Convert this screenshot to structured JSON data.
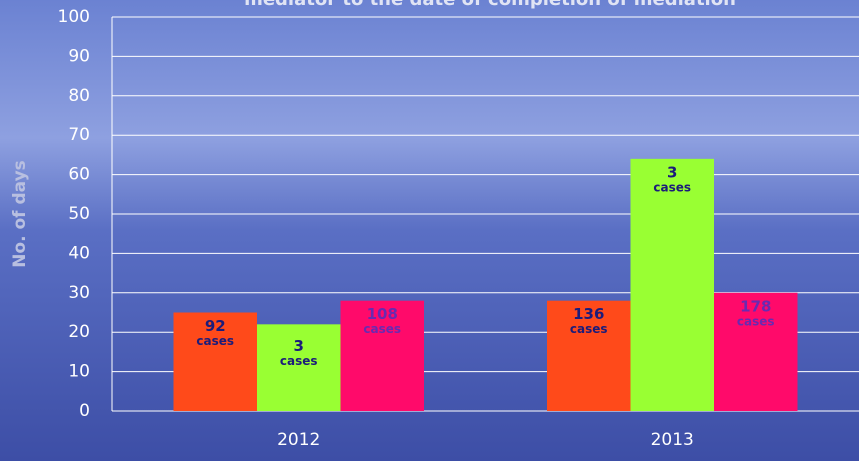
{
  "chart_data": {
    "type": "bar",
    "title": "mediator to the date of completion of mediation",
    "y_label": "No. of days",
    "categories": [
      "2012",
      "2013"
    ],
    "series": [
      {
        "color": "#ff4a1a",
        "values": [
          25,
          28
        ],
        "case_counts": [
          92,
          136
        ],
        "label_color": "#1c1c7a"
      },
      {
        "color": "#99ff33",
        "values": [
          22,
          64
        ],
        "case_counts": [
          3,
          3
        ],
        "label_color": "#1c1c7a"
      },
      {
        "color": "#ff0a6a",
        "values": [
          28,
          30
        ],
        "case_counts": [
          108,
          178
        ],
        "label_color": "#6a2ab0"
      }
    ],
    "case_unit": "cases",
    "ylim": [
      0,
      100
    ],
    "yticks": [
      0,
      10,
      20,
      30,
      40,
      50,
      60,
      70,
      80,
      90,
      100
    ],
    "grid": true
  }
}
